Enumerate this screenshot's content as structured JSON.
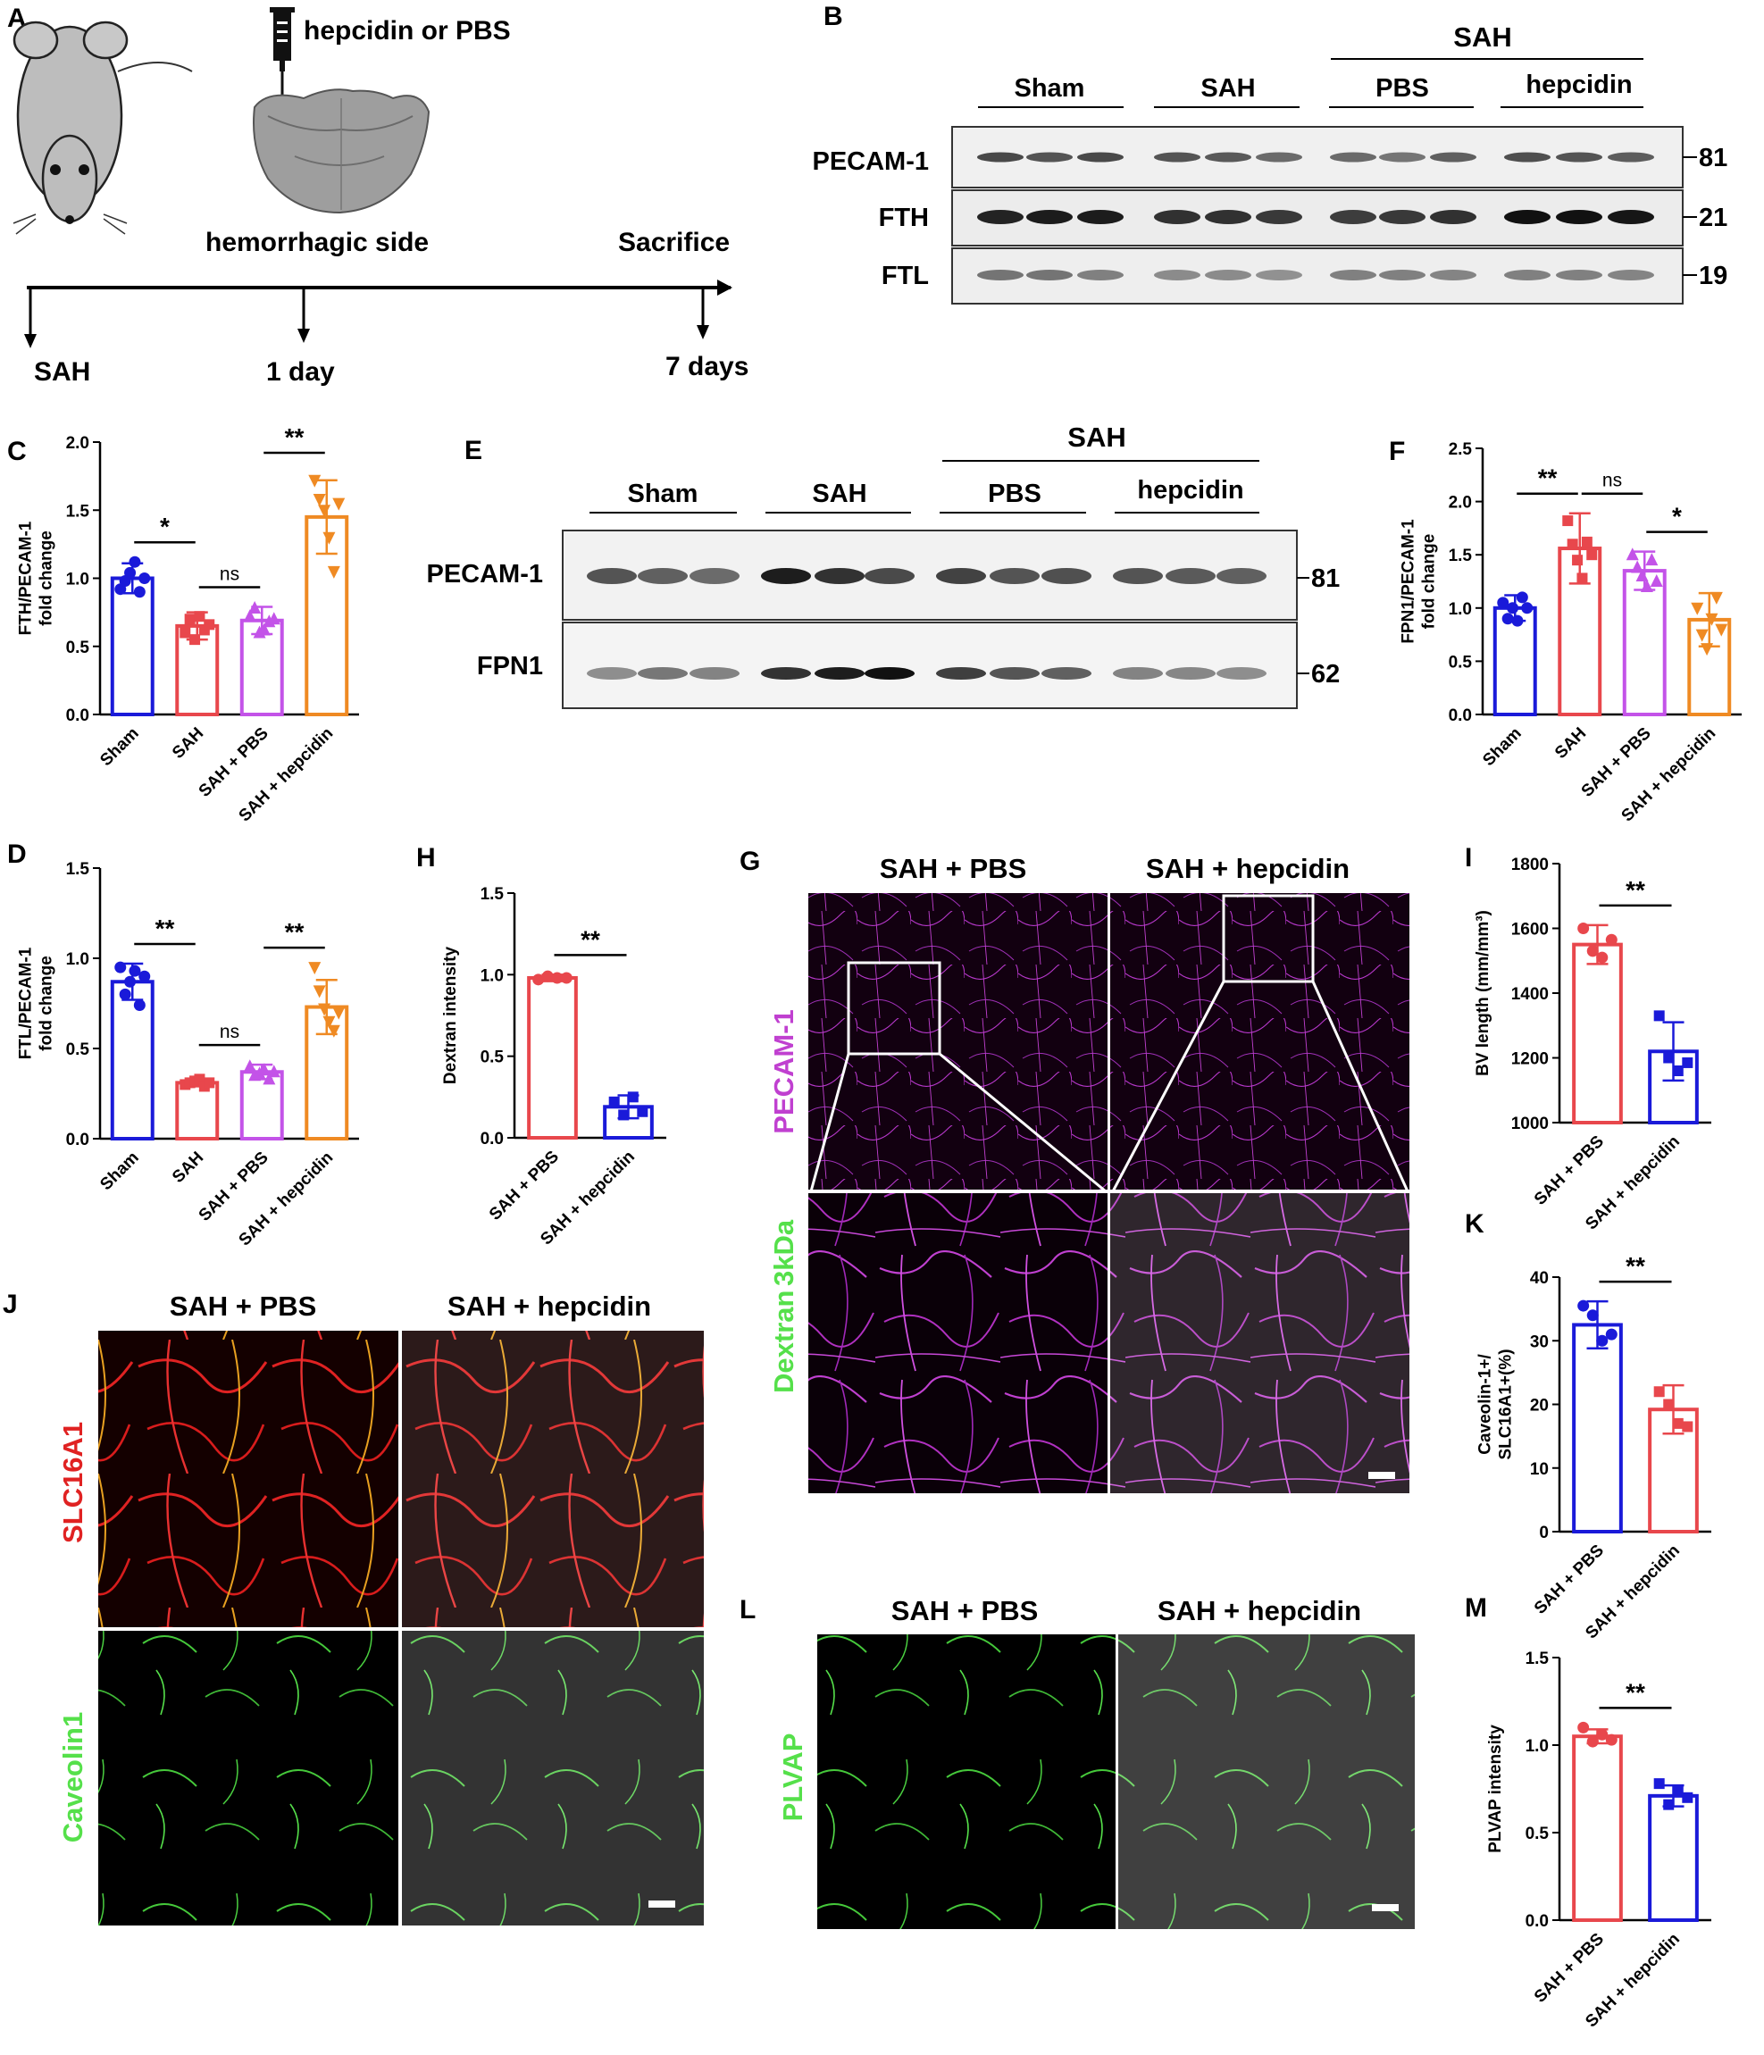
{
  "panel_letters": {
    "A": "A",
    "B": "B",
    "C": "C",
    "D": "D",
    "E": "E",
    "F": "F",
    "G": "G",
    "H": "H",
    "I": "I",
    "J": "J",
    "K": "K",
    "L": "L",
    "M": "M"
  },
  "timeline": {
    "injection_label": "hepcidin or PBS",
    "hemorrhagic_label": "hemorrhagic side",
    "sacrifice_label": "Sacrifice",
    "t0": "SAH",
    "t1": "1 day",
    "t2": "7 days"
  },
  "blot_B": {
    "header": "SAH",
    "groups": [
      "Sham",
      "SAH",
      "PBS",
      "hepcidin"
    ],
    "proteins": [
      "PECAM-1",
      "FTH",
      "FTL"
    ],
    "mw": [
      "81",
      "21",
      "19"
    ]
  },
  "blot_E": {
    "header": "SAH",
    "groups": [
      "Sham",
      "SAH",
      "PBS",
      "hepcidin"
    ],
    "proteins": [
      "PECAM-1",
      "FPN1"
    ],
    "mw": [
      "81",
      "62"
    ]
  },
  "images_G": {
    "cols": [
      "SAH + PBS",
      "SAH + hepcidin"
    ],
    "row1_label": "PECAM-1",
    "row2_label_a": "Dextran",
    "row2_label_b": "3kDa"
  },
  "images_J": {
    "cols": [
      "SAH + PBS",
      "SAH + hepcidin"
    ],
    "row1_label": "SLC16A1",
    "row2_label": "Caveolin1"
  },
  "images_L": {
    "cols": [
      "SAH + PBS",
      "SAH + hepcidin"
    ],
    "row1_label": "PLVAP"
  },
  "colors": {
    "blue": "#1a1ad9",
    "red": "#e8474c",
    "violet": "#c353e8",
    "orange": "#ef8a23",
    "magenta": "#c040d0",
    "green": "#55e04a",
    "slc_red": "#e02222"
  },
  "chart_data": [
    {
      "id": "C",
      "type": "bar",
      "ylabel": "FTH/PECAM-1\nfold change",
      "categories": [
        "Sham",
        "SAH",
        "SAH + PBS",
        "SAH + hepcidin"
      ],
      "ylim": [
        0,
        2.0
      ],
      "yticks": [
        "0.0",
        "0.5",
        "1.0",
        "1.5",
        "2.0"
      ],
      "values": [
        1.0,
        0.65,
        0.69,
        1.45
      ],
      "errors": [
        0.11,
        0.1,
        0.1,
        0.27
      ],
      "points": [
        [
          0.92,
          0.98,
          1.04,
          1.12,
          0.9,
          1.0
        ],
        [
          0.6,
          0.7,
          0.55,
          0.72,
          0.62,
          0.66
        ],
        [
          0.72,
          0.78,
          0.6,
          0.62,
          0.68,
          0.7
        ],
        [
          1.72,
          1.58,
          1.5,
          1.3,
          1.05,
          1.55
        ]
      ],
      "sig": [
        {
          "a": 0,
          "b": 1,
          "label": "*"
        },
        {
          "a": 1,
          "b": 2,
          "label": "ns"
        },
        {
          "a": 2,
          "b": 3,
          "label": "**"
        }
      ]
    },
    {
      "id": "D",
      "type": "bar",
      "ylabel": "FTL/PECAM-1\nfold change",
      "categories": [
        "Sham",
        "SAH",
        "SAH + PBS",
        "SAH + hepcidin"
      ],
      "ylim": [
        0,
        1.5
      ],
      "yticks": [
        "0.0",
        "0.5",
        "1.0",
        "1.5"
      ],
      "values": [
        0.87,
        0.31,
        0.37,
        0.73
      ],
      "errors": [
        0.1,
        0.02,
        0.04,
        0.15
      ],
      "points": [
        [
          0.95,
          0.8,
          0.87,
          0.93,
          0.74,
          0.9
        ],
        [
          0.3,
          0.31,
          0.32,
          0.33,
          0.29,
          0.31
        ],
        [
          0.4,
          0.35,
          0.36,
          0.38,
          0.33,
          0.37
        ],
        [
          0.95,
          0.82,
          0.72,
          0.65,
          0.6,
          0.7
        ]
      ],
      "sig": [
        {
          "a": 0,
          "b": 1,
          "label": "**"
        },
        {
          "a": 1,
          "b": 2,
          "label": "ns"
        },
        {
          "a": 2,
          "b": 3,
          "label": "**"
        }
      ]
    },
    {
      "id": "F",
      "type": "bar",
      "ylabel": "FPN1/PECAM-1\nfold change",
      "categories": [
        "Sham",
        "SAH",
        "SAH + PBS",
        "SAH + hepcidin"
      ],
      "ylim": [
        0,
        2.5
      ],
      "yticks": [
        "0.0",
        "0.5",
        "1.0",
        "1.5",
        "2.0",
        "2.5"
      ],
      "values": [
        1.0,
        1.56,
        1.35,
        0.89
      ],
      "errors": [
        0.12,
        0.33,
        0.18,
        0.25
      ],
      "points": [
        [
          1.05,
          0.9,
          1.0,
          0.88,
          1.1,
          1.0
        ],
        [
          1.82,
          1.6,
          1.45,
          1.28,
          1.62,
          1.5
        ],
        [
          1.5,
          1.38,
          1.3,
          1.2,
          1.45,
          1.25
        ],
        [
          1.0,
          0.75,
          0.62,
          0.9,
          1.1,
          0.8
        ]
      ],
      "sig": [
        {
          "a": 0,
          "b": 1,
          "label": "**"
        },
        {
          "a": 1,
          "b": 2,
          "label": "ns"
        },
        {
          "a": 2,
          "b": 3,
          "label": "*"
        }
      ]
    },
    {
      "id": "H",
      "type": "bar",
      "ylabel": "Dextran intensity",
      "categories": [
        "SAH + PBS",
        "SAH + hepcidin"
      ],
      "ylim": [
        0,
        1.5
      ],
      "yticks": [
        "0.0",
        "0.5",
        "1.0",
        "1.5"
      ],
      "values": [
        0.98,
        0.19
      ],
      "errors": [
        0.02,
        0.07
      ],
      "points": [
        [
          0.97,
          0.99,
          0.98,
          0.98
        ],
        [
          0.22,
          0.14,
          0.25,
          0.16
        ]
      ],
      "sig": [
        {
          "a": 0,
          "b": 1,
          "label": "**"
        }
      ]
    },
    {
      "id": "I",
      "type": "bar",
      "ylabel": "BV length (mm/mm³)",
      "categories": [
        "SAH + PBS",
        "SAH + hepcidin"
      ],
      "ylim": [
        1000,
        1800
      ],
      "yticks": [
        "1000",
        "1200",
        "1400",
        "1600",
        "1800"
      ],
      "values": [
        1550,
        1220
      ],
      "errors": [
        60,
        90
      ],
      "points": [
        [
          1600,
          1530,
          1510,
          1565
        ],
        [
          1330,
          1200,
          1160,
          1185
        ]
      ],
      "sig": [
        {
          "a": 0,
          "b": 1,
          "label": "**"
        }
      ]
    },
    {
      "id": "K",
      "type": "bar",
      "ylabel": "Caveolin-1+/\nSLC16A1+(%)",
      "categories": [
        "SAH + PBS",
        "SAH + hepcidin"
      ],
      "ylim": [
        0,
        40
      ],
      "yticks": [
        "0",
        "10",
        "20",
        "30",
        "40"
      ],
      "values": [
        32.5,
        19.2
      ],
      "errors": [
        3.7,
        3.8
      ],
      "points": [
        [
          35.5,
          34,
          30,
          31
        ],
        [
          22,
          20,
          17,
          16.5
        ]
      ],
      "sig": [
        {
          "a": 0,
          "b": 1,
          "label": "**"
        }
      ]
    },
    {
      "id": "M",
      "type": "bar",
      "ylabel": "PLVAP intensity",
      "categories": [
        "SAH + PBS",
        "SAH + hepcidin"
      ],
      "ylim": [
        0,
        1.5
      ],
      "yticks": [
        "0.0",
        "0.5",
        "1.0",
        "1.5"
      ],
      "values": [
        1.05,
        0.71
      ],
      "errors": [
        0.04,
        0.06
      ],
      "points": [
        [
          1.1,
          1.02,
          1.06,
          1.03
        ],
        [
          0.78,
          0.66,
          0.74,
          0.7
        ]
      ],
      "sig": [
        {
          "a": 0,
          "b": 1,
          "label": "**"
        }
      ]
    }
  ]
}
